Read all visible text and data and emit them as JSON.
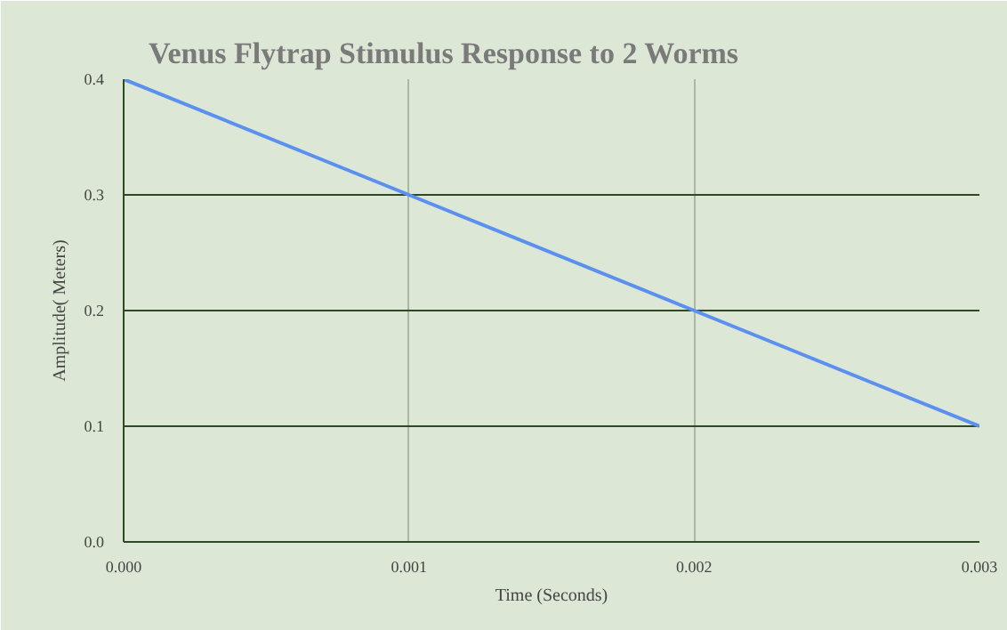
{
  "chart_data": {
    "type": "line",
    "title": "Venus Flytrap Stimulus Response to 2 Worms",
    "xlabel": "Time (Seconds)",
    "ylabel": "Amplitude( Meters)",
    "x": [
      0,
      0.001,
      0.002,
      0.003
    ],
    "series": [
      {
        "color": "#5b8ff0",
        "values": [
          0.4,
          0.3,
          0.2,
          0.1
        ]
      }
    ],
    "xlim": [
      0,
      0.003
    ],
    "ylim": [
      0,
      0.4
    ],
    "xticks": [
      {
        "value": 0,
        "label": "0.000"
      },
      0.001,
      0.002,
      0.003
    ],
    "yticks": [
      {
        "value": 0,
        "label": "0.0"
      },
      0.1,
      0.2,
      0.3,
      0.4
    ],
    "grid": true,
    "marker": "none",
    "line_style": "solid"
  }
}
